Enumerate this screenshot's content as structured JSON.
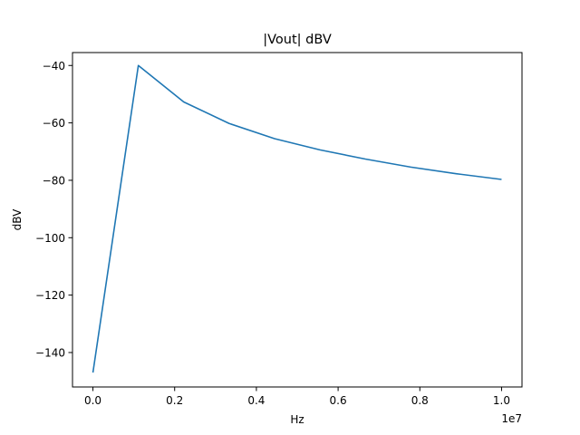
{
  "chart_data": {
    "type": "line",
    "title": "|Vout| dBV",
    "xlabel": "Hz",
    "ylabel": "dBV",
    "x_offset_label": "1e7",
    "xlim": [
      -0.05,
      1.05
    ],
    "ylim": [
      -152,
      -35.5
    ],
    "x_scale": 10000000,
    "xticks": [
      0.0,
      0.2,
      0.4,
      0.6,
      0.8,
      1.0
    ],
    "xtick_labels": [
      "0.0",
      "0.2",
      "0.4",
      "0.6",
      "0.8",
      "1.0"
    ],
    "yticks": [
      -140,
      -120,
      -100,
      -80,
      -60,
      -40
    ],
    "ytick_labels": [
      "−140",
      "−120",
      "−100",
      "−80",
      "−60",
      "−40"
    ],
    "grid": false,
    "series": [
      {
        "color": "#1f77b4",
        "x": [
          0,
          1111111,
          2222222,
          3333333,
          4444444,
          5555556,
          6666667,
          7777778,
          8888889,
          10000000
        ],
        "y": [
          -147,
          -40,
          -52.7,
          -60.2,
          -65.5,
          -69.4,
          -72.6,
          -75.4,
          -77.7,
          -79.7
        ]
      }
    ]
  }
}
